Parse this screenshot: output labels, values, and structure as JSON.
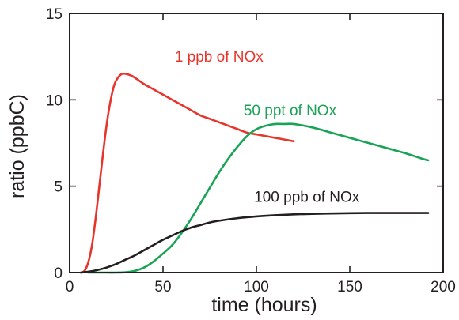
{
  "chart_data": {
    "type": "line",
    "xlabel": "time (hours)",
    "ylabel": "ratio (ppbC)",
    "xlim": [
      0,
      200
    ],
    "ylim": [
      0,
      15
    ],
    "x_ticks": [
      "0",
      "50",
      "100",
      "150",
      "200"
    ],
    "y_ticks": [
      "0",
      "5",
      "10",
      "15"
    ],
    "grid": false,
    "legend": "none (series labeled directly on the plot)",
    "series": [
      {
        "name": "1 ppb of NOx",
        "color": "#e8352c",
        "x": [
          6,
          8,
          10,
          12,
          14,
          16,
          18,
          20,
          22,
          24,
          26,
          28,
          30,
          33,
          36,
          40,
          45,
          50,
          55,
          60,
          65,
          70,
          75,
          80,
          85,
          90,
          95,
          100,
          105,
          110,
          115,
          120
        ],
        "y": [
          0,
          0.1,
          0.6,
          1.6,
          3.2,
          5.1,
          7.0,
          8.7,
          10.0,
          10.9,
          11.3,
          11.5,
          11.5,
          11.4,
          11.2,
          10.9,
          10.6,
          10.3,
          10.0,
          9.7,
          9.4,
          9.1,
          8.9,
          8.7,
          8.5,
          8.3,
          8.1,
          8.0,
          7.9,
          7.8,
          7.7,
          7.6
        ]
      },
      {
        "name": "50 ppt of NOx",
        "color": "#1aa356",
        "x": [
          10,
          15,
          20,
          25,
          30,
          35,
          40,
          45,
          50,
          55,
          60,
          65,
          70,
          75,
          80,
          85,
          90,
          95,
          100,
          105,
          110,
          115,
          120,
          130,
          140,
          150,
          160,
          170,
          180,
          190,
          192
        ],
        "y": [
          0,
          0,
          0,
          0,
          0.02,
          0.1,
          0.3,
          0.65,
          1.1,
          1.6,
          2.3,
          3.1,
          4.0,
          4.9,
          5.8,
          6.6,
          7.3,
          7.9,
          8.3,
          8.5,
          8.6,
          8.6,
          8.6,
          8.4,
          8.1,
          7.8,
          7.5,
          7.2,
          6.9,
          6.55,
          6.5
        ]
      },
      {
        "name": "100 ppb of NOx",
        "color": "#231f20",
        "x": [
          6,
          10,
          15,
          20,
          25,
          30,
          35,
          40,
          45,
          50,
          55,
          60,
          65,
          70,
          75,
          80,
          90,
          100,
          110,
          120,
          130,
          140,
          150,
          160,
          170,
          180,
          192
        ],
        "y": [
          0,
          0.05,
          0.15,
          0.3,
          0.5,
          0.75,
          1.0,
          1.3,
          1.6,
          1.9,
          2.15,
          2.4,
          2.6,
          2.75,
          2.9,
          3.0,
          3.15,
          3.25,
          3.32,
          3.37,
          3.4,
          3.42,
          3.44,
          3.45,
          3.45,
          3.45,
          3.45
        ]
      }
    ]
  }
}
